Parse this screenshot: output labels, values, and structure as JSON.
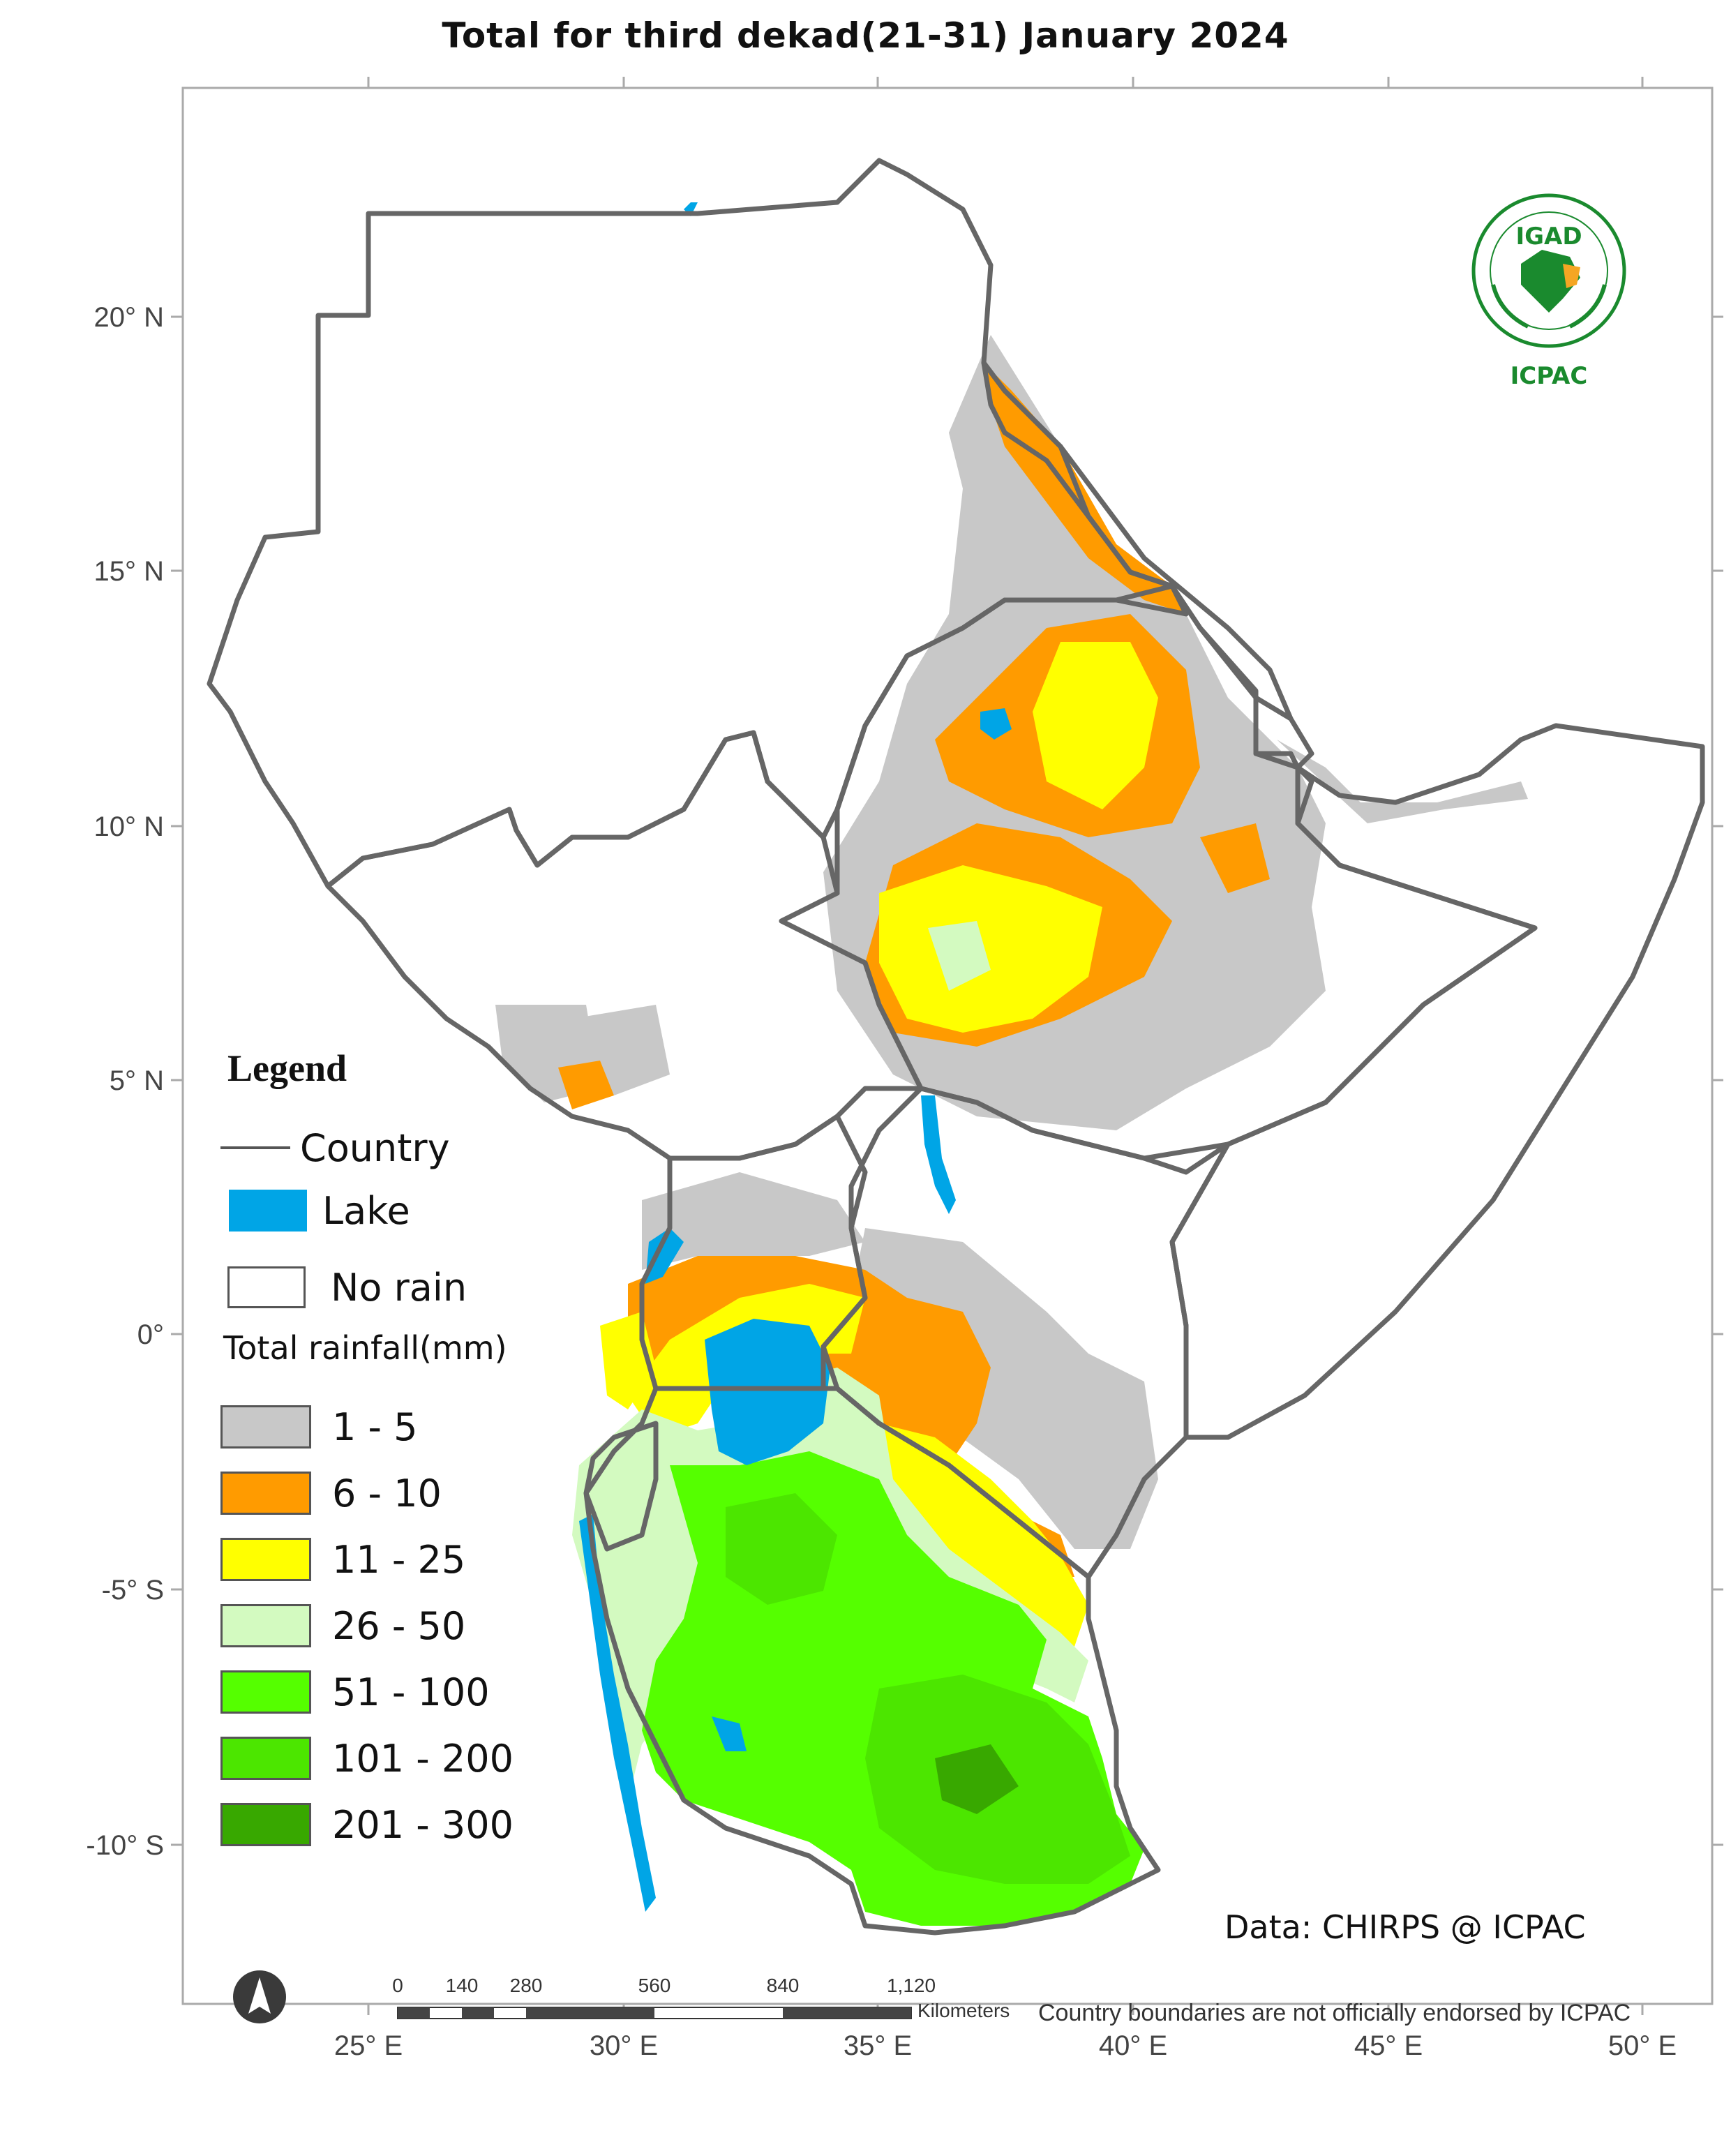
{
  "title": "Total  for  third dekad(21-31) January 2024",
  "y_axis_labels": [
    "20° N",
    "15° N",
    "10° N",
    "5° N",
    "0°",
    "-5° S",
    "-10° S"
  ],
  "x_axis_labels": [
    "25° E",
    "30° E",
    "35° E",
    "40° E",
    "45° E",
    "50° E"
  ],
  "legend": {
    "title": "Legend",
    "country_label": "Country",
    "lake_label": "Lake",
    "no_rain_label": "No rain",
    "rainfall_title": "Total rainfall(mm)",
    "classes": [
      {
        "label": "1 - 5",
        "color": "#c8c8c8"
      },
      {
        "label": "6 - 10",
        "color": "#ff9b00"
      },
      {
        "label": "11 - 25",
        "color": "#ffff00"
      },
      {
        "label": "26 - 50",
        "color": "#d3fac0"
      },
      {
        "label": "51 - 100",
        "color": "#55ff00"
      },
      {
        "label": "101 - 200",
        "color": "#4ce600"
      },
      {
        "label": "201 - 300",
        "color": "#38a800"
      }
    ],
    "lake_color": "#00a5e6",
    "no_rain_color": "#ffffff"
  },
  "logo": {
    "top_text": "IGAD",
    "bottom_text": "ICPAC",
    "icon": "igad-icpac-logo"
  },
  "credit": "Data: CHIRPS @ ICPAC",
  "disclaimer": "Country boundaries are not officially endorsed by ICPAC",
  "scale_bar": {
    "unit": "Kilometers",
    "labels": [
      "0",
      "140",
      "280",
      "560",
      "840",
      "1,120"
    ]
  },
  "north_arrow_icon": "north-arrow-icon"
}
